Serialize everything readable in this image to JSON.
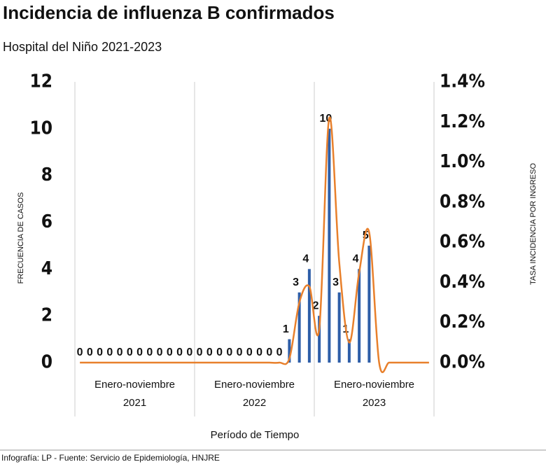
{
  "chart_data": {
    "type": "bar-line",
    "title": "Incidencia de influenza B confirmados",
    "subtitle": "Hospital del Niño 2021-2023",
    "x_label": "Período de Tiempo",
    "y_label": "FRECUENCIA DE CASOS",
    "y2_label": "TASA INCIDENCIA POR INGRESO",
    "footer": "Infografía: LP - Fuente: Servicio de Epidemiología, HNJRE",
    "groups": [
      [
        "Enero-noviembre",
        "2021"
      ],
      [
        "Enero-noviembre",
        "2022"
      ],
      [
        "Enero-noviembre",
        "2023"
      ]
    ],
    "categories": [
      null,
      null,
      null,
      null,
      null,
      null,
      null,
      null,
      null,
      null,
      null,
      null,
      null,
      null,
      null,
      null,
      null,
      null,
      null,
      null,
      null,
      null,
      null,
      null,
      null,
      null,
      null,
      null,
      null,
      null,
      null,
      null,
      null,
      null,
      null,
      null
    ],
    "series": [
      {
        "name": "Frecuencia de casos",
        "color": "#2e5ea8",
        "values": [
          0,
          0,
          0,
          0,
          0,
          0,
          0,
          0,
          0,
          0,
          0,
          0,
          0,
          0,
          0,
          0,
          0,
          0,
          0,
          0,
          0,
          1,
          3,
          4,
          2,
          10,
          3,
          1,
          4,
          5,
          null,
          null,
          null,
          null,
          null,
          null
        ]
      },
      {
        "name": "Tasa incidencia por ingreso",
        "color": "#e8802c",
        "axis": "y2",
        "values": [
          0,
          0,
          0,
          0,
          0,
          0,
          0,
          0,
          0,
          0,
          0,
          0,
          0,
          0,
          0,
          0,
          0,
          0,
          0,
          0,
          0,
          0.02,
          0.3,
          0.38,
          0.17,
          1.22,
          0.5,
          0.1,
          0.45,
          0.65,
          0,
          0,
          0,
          0,
          0,
          0
        ]
      }
    ],
    "ylim": [
      0,
      12
    ],
    "yticks": [
      0,
      2,
      4,
      6,
      8,
      10,
      12
    ],
    "y2lim": [
      0,
      1.4
    ],
    "y2ticks": [
      {
        "value": 0,
        "label": "0.0%"
      },
      {
        "value": 0.2,
        "label": "0.2%"
      },
      {
        "value": 0.4,
        "label": "0.4%"
      },
      {
        "value": 0.6,
        "label": "0.6%"
      },
      {
        "value": 0.8,
        "label": "0.8%"
      },
      {
        "value": 1.0,
        "label": "1.0%"
      },
      {
        "value": 1.2,
        "label": "1.2%"
      },
      {
        "value": 1.4,
        "label": "1.4%"
      }
    ]
  }
}
